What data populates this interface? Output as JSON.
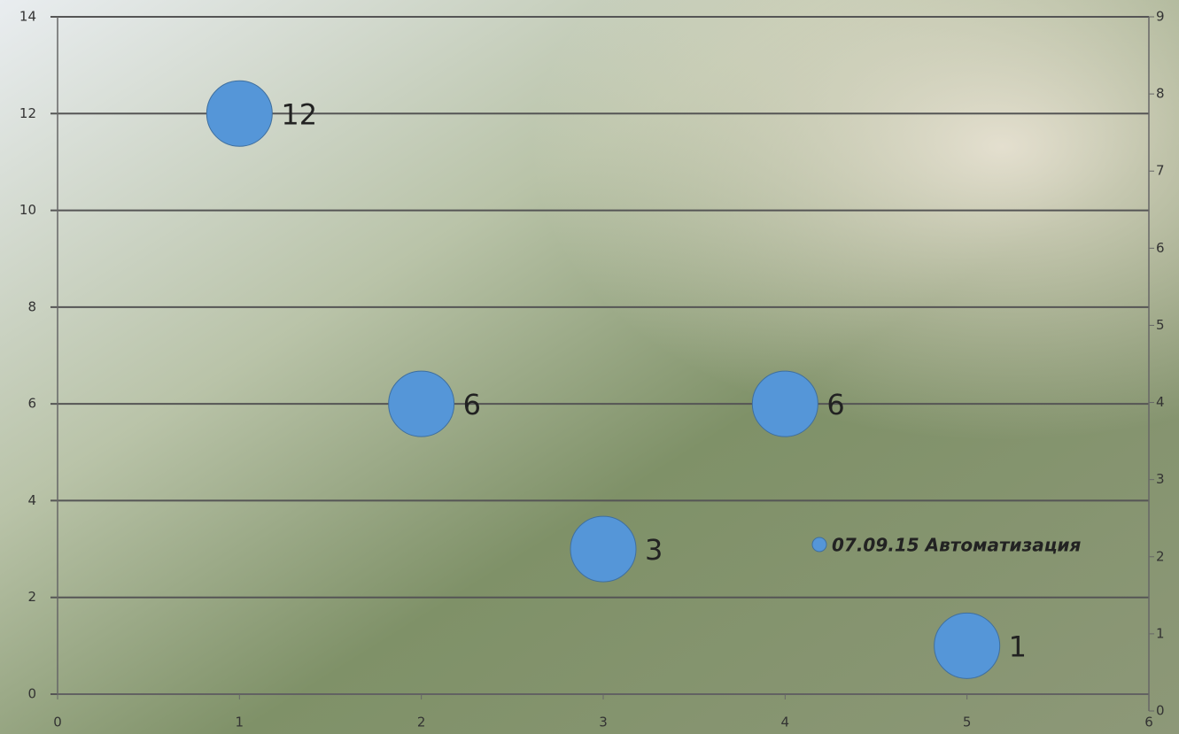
{
  "chart_data": {
    "type": "bubble",
    "x": [
      1,
      2,
      3,
      4,
      5
    ],
    "series": [
      {
        "name": "07.09.15 Автоматизация",
        "color": "#5596d8",
        "values": [
          12,
          6,
          3,
          6,
          1
        ]
      }
    ],
    "xlim": [
      0,
      6
    ],
    "xticks": [
      0,
      1,
      2,
      3,
      4,
      5,
      6
    ],
    "ylim": [
      0,
      14
    ],
    "yticks": [
      0,
      2,
      4,
      6,
      8,
      10,
      12,
      14
    ],
    "y2lim": [
      0,
      9
    ],
    "y2ticks": [
      0,
      1,
      2,
      3,
      4,
      5,
      6,
      7,
      8,
      9
    ],
    "grid": true,
    "data_labels": true
  }
}
